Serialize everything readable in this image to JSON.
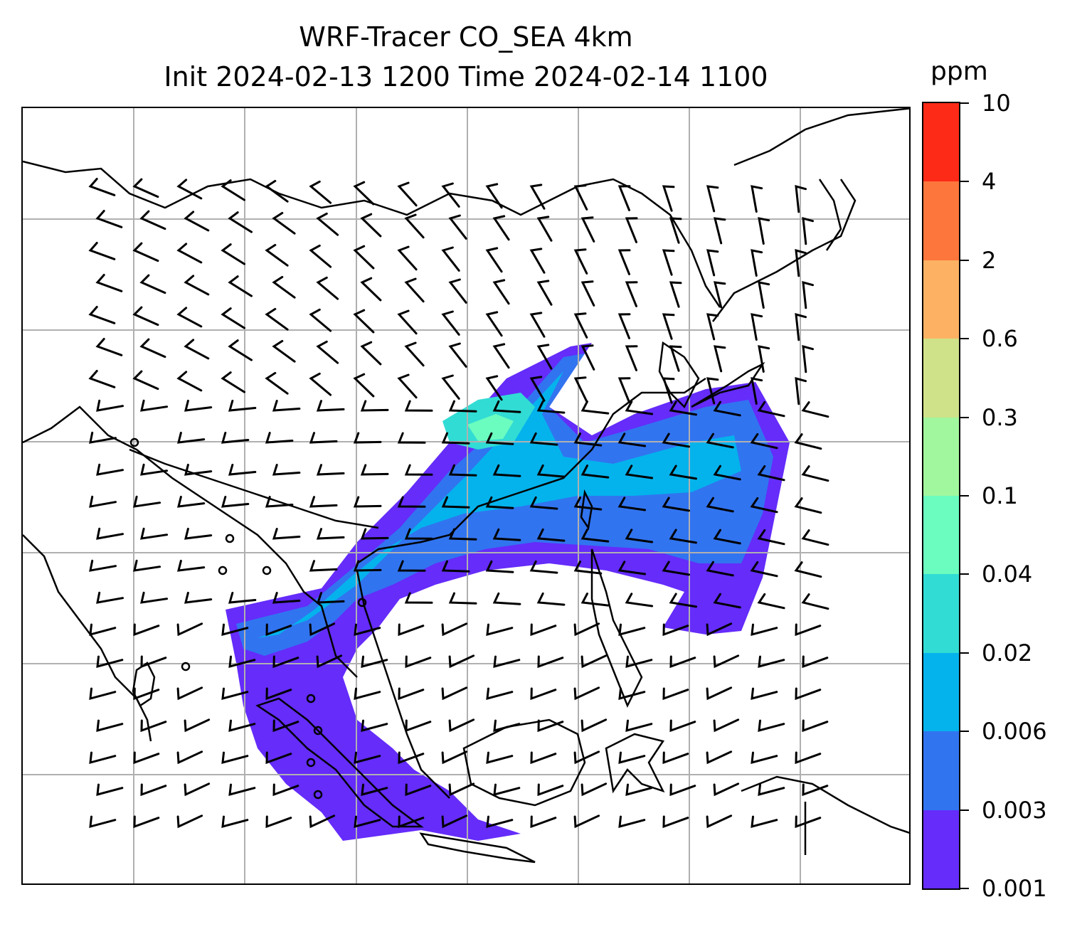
{
  "title": {
    "line1": "WRF-Tracer CO_SEA 4km",
    "line2": "Init 2024-02-13 1200 Time 2024-02-14 1100"
  },
  "colorbar": {
    "unit": "ppm",
    "ticks": [
      "10",
      "4",
      "2",
      "0.6",
      "0.3",
      "0.1",
      "0.04",
      "0.02",
      "0.006",
      "0.003",
      "0.001"
    ],
    "colors": [
      "#652cfa",
      "#3174f0",
      "#04b3ec",
      "#31dcd4",
      "#6bfcbf",
      "#a1f79d",
      "#cfe289",
      "#fcb163",
      "#fd763c",
      "#fc2a17"
    ]
  },
  "map": {
    "grid": "on",
    "features": [
      "coastlines",
      "country-borders",
      "wind-barbs",
      "tracer-concentration-fill"
    ],
    "line_color": "#000000",
    "grid_color": "#b0b0b0"
  }
}
